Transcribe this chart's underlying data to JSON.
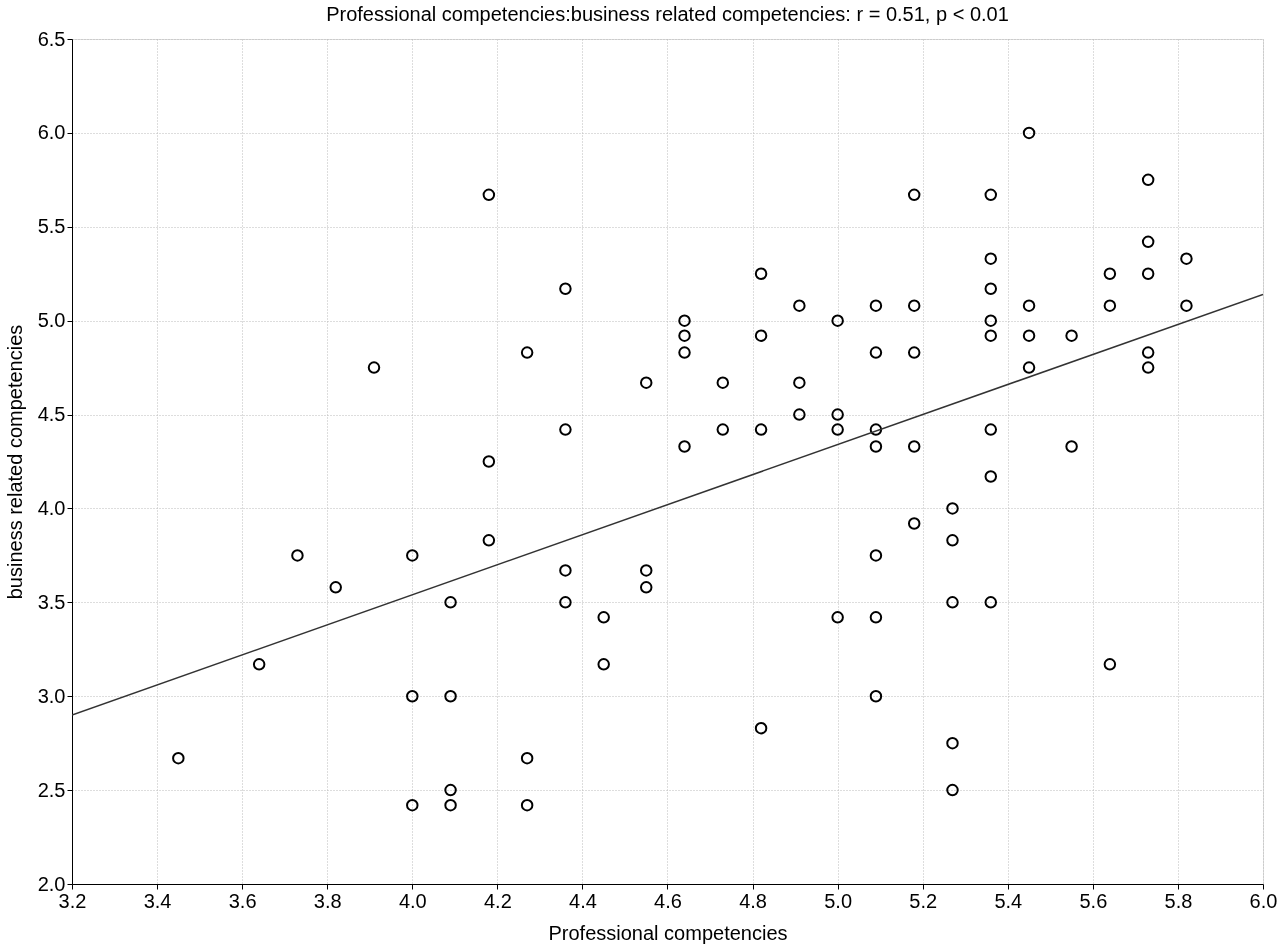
{
  "chart_data": {
    "type": "scatter",
    "title": "Professional competencies:business related competencies:    r = 0.51, p < 0.01",
    "xlabel": "Professional competencies",
    "ylabel": "business related competencies",
    "xlim": [
      3.2,
      6.0
    ],
    "xticks": [
      3.2,
      3.4,
      3.6,
      3.8,
      {
        "value": 4,
        "label": "4.0"
      },
      4.2,
      4.4,
      4.6,
      4.8,
      {
        "value": 5,
        "label": "5.0"
      },
      5.2,
      5.4,
      5.6,
      5.8,
      {
        "value": 6,
        "label": "6.0"
      }
    ],
    "ylim": [
      2.0,
      6.5
    ],
    "yticks": [
      {
        "value": 2,
        "label": "2.0"
      },
      2.5,
      {
        "value": 3,
        "label": "3.0"
      },
      3.5,
      {
        "value": 4,
        "label": "4.0"
      },
      4.5,
      {
        "value": 5,
        "label": "5.0"
      },
      5.5,
      {
        "value": 6,
        "label": "6.0"
      },
      6.5
    ],
    "grid": true,
    "marker": "circle",
    "series": [
      {
        "color": "#000000",
        "x": [
          3.45,
          3.64,
          3.73,
          3.82,
          3.91,
          4.0,
          4.0,
          4.0,
          4.09,
          4.09,
          4.09,
          4.09,
          4.18,
          4.18,
          4.18,
          4.27,
          4.27,
          4.27,
          4.36,
          4.36,
          4.36,
          4.36,
          4.45,
          4.45,
          4.55,
          4.55,
          4.55,
          4.64,
          4.64,
          4.64,
          4.64,
          4.73,
          4.73,
          4.82,
          4.82,
          4.82,
          4.82,
          4.91,
          4.91,
          4.91,
          5.0,
          5.0,
          5.0,
          5.0,
          5.09,
          5.09,
          5.09,
          5.09,
          5.09,
          5.09,
          5.09,
          5.18,
          5.18,
          5.18,
          5.18,
          5.18,
          5.27,
          5.27,
          5.27,
          5.27,
          5.27,
          5.36,
          5.36,
          5.36,
          5.36,
          5.36,
          5.36,
          5.36,
          5.36,
          5.45,
          5.45,
          5.45,
          5.45,
          5.55,
          5.55,
          5.64,
          5.64,
          5.64,
          5.73,
          5.73,
          5.73,
          5.73,
          5.73,
          5.82,
          5.82
        ],
        "values": [
          2.67,
          3.17,
          3.75,
          3.58,
          4.75,
          3.75,
          3.0,
          2.42,
          3.5,
          3.0,
          2.5,
          2.42,
          5.67,
          4.25,
          3.83,
          4.83,
          2.67,
          2.42,
          5.17,
          4.42,
          3.67,
          3.5,
          3.42,
          3.17,
          4.67,
          3.67,
          3.58,
          5.0,
          4.92,
          4.83,
          4.33,
          4.67,
          4.42,
          5.25,
          4.92,
          4.42,
          2.83,
          5.08,
          4.67,
          4.5,
          5.0,
          4.5,
          4.42,
          3.42,
          5.08,
          4.83,
          4.42,
          4.33,
          3.75,
          3.42,
          3.0,
          5.67,
          5.08,
          4.83,
          4.33,
          3.92,
          4.0,
          3.83,
          3.5,
          2.75,
          2.5,
          5.67,
          5.33,
          5.17,
          5.0,
          4.92,
          4.42,
          4.17,
          3.5,
          6.0,
          5.08,
          4.92,
          4.75,
          4.92,
          4.33,
          5.25,
          5.08,
          3.17,
          5.75,
          5.42,
          5.25,
          4.83,
          4.75,
          5.33,
          5.08
        ]
      },
      {
        "type": "line",
        "marker": "none",
        "color": "#333333",
        "x": [
          3.2,
          6.0
        ],
        "values": [
          2.9,
          5.14
        ]
      }
    ]
  }
}
